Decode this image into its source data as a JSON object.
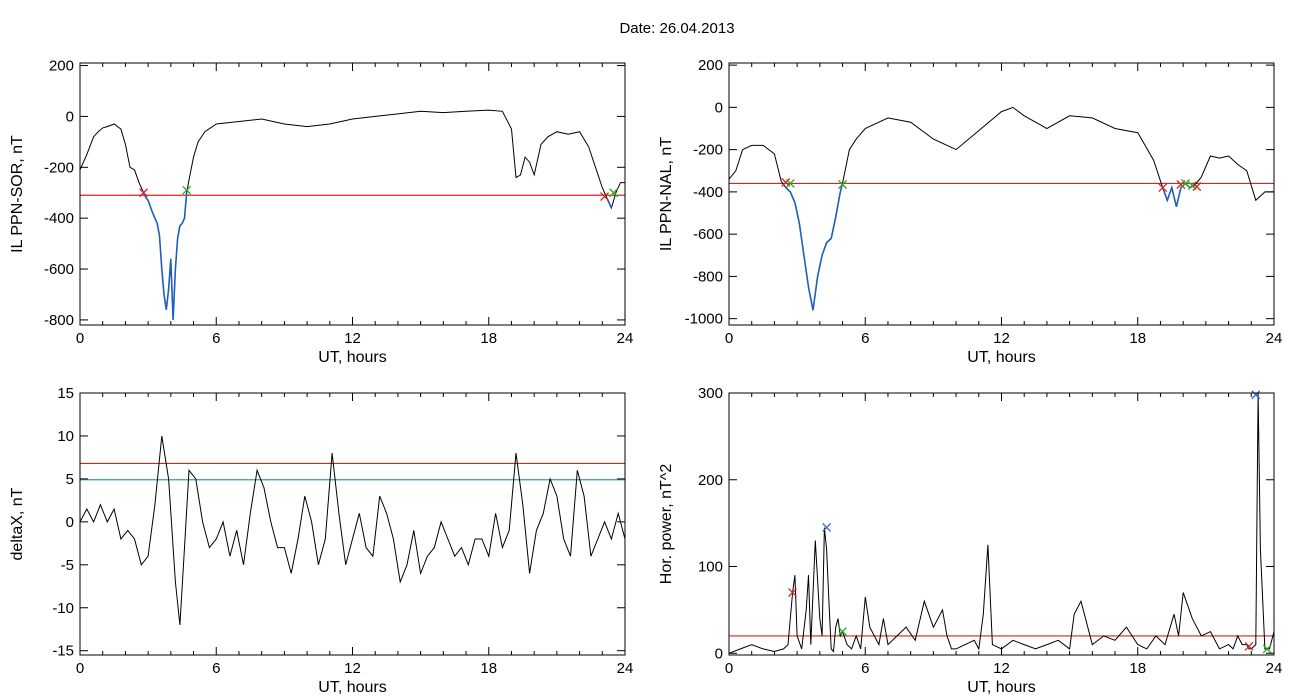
{
  "title": "Date:  26.04.2013",
  "chart_data": [
    {
      "type": "line",
      "xlabel": "UT, hours",
      "ylabel": "IL PPN-SOR, nT",
      "xlim": [
        0,
        24
      ],
      "ylim": [
        -820,
        210
      ],
      "xticks": [
        0,
        6,
        12,
        18,
        24
      ],
      "yticks": [
        200,
        0,
        -200,
        -400,
        -600,
        -800
      ],
      "threshold": -310,
      "line_color": "#000000",
      "highlight_color": "#1f5fbf",
      "threshold_color": "#dd2222",
      "series": [
        {
          "x": [
            0,
            0.3,
            0.6,
            0.8,
            1.0,
            1.2,
            1.5,
            1.8,
            2.0,
            2.2,
            2.4,
            2.6,
            2.8,
            2.9,
            3.0,
            3.2,
            3.4,
            3.5,
            3.6,
            3.7,
            3.8,
            3.9,
            4.0,
            4.1,
            4.2,
            4.3,
            4.4,
            4.5,
            4.6,
            4.7,
            4.8,
            5.0,
            5.2,
            5.5,
            6.0,
            7,
            8,
            9,
            10,
            11,
            12,
            13,
            14,
            15,
            16,
            17,
            18,
            18.6,
            19.0,
            19.2,
            19.4,
            19.6,
            19.8,
            20.0,
            20.3,
            20.6,
            21.0,
            21.5,
            22.0,
            22.4,
            22.7,
            23.0,
            23.2,
            23.4,
            23.6,
            23.8,
            24.0
          ],
          "y": [
            -210,
            -150,
            -80,
            -60,
            -45,
            -40,
            -30,
            -50,
            -110,
            -200,
            -210,
            -260,
            -300,
            -320,
            -330,
            -380,
            -420,
            -470,
            -600,
            -700,
            -760,
            -680,
            -560,
            -800,
            -600,
            -480,
            -430,
            -420,
            -400,
            -300,
            -250,
            -160,
            -100,
            -60,
            -30,
            -20,
            -10,
            -30,
            -40,
            -30,
            -10,
            0,
            10,
            20,
            15,
            20,
            25,
            20,
            -50,
            -240,
            -230,
            -160,
            -180,
            -230,
            -110,
            -80,
            -60,
            -70,
            -60,
            -120,
            -200,
            -280,
            -320,
            -360,
            -300,
            -260,
            -260
          ]
        }
      ],
      "markers": [
        {
          "x": 2.8,
          "y": -300,
          "color": "#dd2222"
        },
        {
          "x": 4.7,
          "y": -290,
          "color": "#22aa22"
        },
        {
          "x": 23.1,
          "y": -315,
          "color": "#dd2222"
        },
        {
          "x": 23.5,
          "y": -300,
          "color": "#22aa22"
        }
      ],
      "highlight_ranges": [
        [
          2.8,
          4.7
        ],
        [
          23.1,
          23.5
        ]
      ]
    },
    {
      "type": "line",
      "xlabel": "UT, hours",
      "ylabel": "IL PPN-NAL, nT",
      "xlim": [
        0,
        24
      ],
      "ylim": [
        -1030,
        210
      ],
      "xticks": [
        0,
        6,
        12,
        18,
        24
      ],
      "yticks": [
        200,
        0,
        -200,
        -400,
        -600,
        -800,
        -1000
      ],
      "threshold": -360,
      "line_color": "#000000",
      "highlight_color": "#1f5fbf",
      "threshold_color": "#dd2222",
      "series": [
        {
          "x": [
            0,
            0.3,
            0.6,
            1.0,
            1.5,
            2.0,
            2.3,
            2.5,
            2.7,
            2.9,
            3.1,
            3.3,
            3.5,
            3.7,
            3.9,
            4.1,
            4.3,
            4.5,
            4.7,
            4.9,
            5.0,
            5.3,
            5.6,
            6.0,
            7,
            8,
            9,
            10,
            11,
            12,
            12.5,
            13,
            14,
            15,
            16,
            17,
            18,
            18.7,
            19.1,
            19.3,
            19.5,
            19.7,
            19.9,
            20.1,
            20.3,
            20.5,
            20.8,
            21.2,
            21.6,
            22.0,
            22.4,
            22.8,
            23.2,
            23.6,
            24.0
          ],
          "y": [
            -340,
            -300,
            -200,
            -180,
            -180,
            -220,
            -350,
            -380,
            -400,
            -450,
            -550,
            -700,
            -850,
            -960,
            -800,
            -700,
            -640,
            -620,
            -520,
            -400,
            -360,
            -200,
            -150,
            -100,
            -50,
            -70,
            -150,
            -200,
            -110,
            -20,
            0,
            -40,
            -100,
            -40,
            -50,
            -100,
            -120,
            -250,
            -380,
            -440,
            -380,
            -470,
            -380,
            -360,
            -380,
            -370,
            -330,
            -230,
            -240,
            -230,
            -270,
            -300,
            -440,
            -400,
            -400
          ]
        }
      ],
      "markers": [
        {
          "x": 2.5,
          "y": -355,
          "color": "#dd2222"
        },
        {
          "x": 2.7,
          "y": -360,
          "color": "#22aa22"
        },
        {
          "x": 5.0,
          "y": -365,
          "color": "#22aa22"
        },
        {
          "x": 19.1,
          "y": -380,
          "color": "#dd2222"
        },
        {
          "x": 19.9,
          "y": -365,
          "color": "#dd2222"
        },
        {
          "x": 20.1,
          "y": -360,
          "color": "#22aa22"
        },
        {
          "x": 20.4,
          "y": -370,
          "color": "#22aa22"
        },
        {
          "x": 20.6,
          "y": -375,
          "color": "#dd2222"
        }
      ],
      "highlight_ranges": [
        [
          2.5,
          5.0
        ],
        [
          19.1,
          20.6
        ]
      ]
    },
    {
      "type": "line",
      "xlabel": "UT, hours",
      "ylabel": "deltaX, nT",
      "xlim": [
        0,
        24
      ],
      "ylim": [
        -15.5,
        15
      ],
      "xticks": [
        0,
        6,
        12,
        18,
        24
      ],
      "yticks": [
        15,
        10,
        5,
        0,
        -5,
        -10,
        -15
      ],
      "thresholds": [
        {
          "y": 6.8,
          "color": "#dd2222"
        },
        {
          "y": 4.9,
          "color": "#3399aa"
        }
      ],
      "line_color": "#000000",
      "series": [
        {
          "x": [
            0,
            0.3,
            0.6,
            0.9,
            1.2,
            1.5,
            1.8,
            2.1,
            2.4,
            2.7,
            3.0,
            3.3,
            3.6,
            3.9,
            4.2,
            4.4,
            4.6,
            4.8,
            5.1,
            5.4,
            5.7,
            6.0,
            6.3,
            6.6,
            6.9,
            7.2,
            7.5,
            7.8,
            8.1,
            8.4,
            8.7,
            9.0,
            9.3,
            9.6,
            9.9,
            10.2,
            10.5,
            10.8,
            11.1,
            11.4,
            11.7,
            12.0,
            12.3,
            12.6,
            12.9,
            13.2,
            13.5,
            13.8,
            14.1,
            14.4,
            14.7,
            15.0,
            15.3,
            15.6,
            15.9,
            16.2,
            16.5,
            16.8,
            17.1,
            17.4,
            17.7,
            18.0,
            18.3,
            18.6,
            18.9,
            19.2,
            19.5,
            19.8,
            20.1,
            20.4,
            20.7,
            21.0,
            21.3,
            21.6,
            21.9,
            22.2,
            22.5,
            22.8,
            23.1,
            23.4,
            23.7,
            24.0
          ],
          "y": [
            0,
            1.5,
            0,
            2,
            0,
            1.5,
            -2,
            -1,
            -2,
            -5,
            -4,
            2,
            10,
            5,
            -7,
            -12,
            -3,
            6,
            5,
            0,
            -3,
            -2,
            0,
            -4,
            -1,
            -5,
            1,
            6,
            4,
            0,
            -3,
            -3,
            -6,
            -2,
            3,
            0,
            -5,
            -2,
            8,
            1,
            -5,
            -2,
            1,
            -3,
            -4,
            3,
            1,
            -2,
            -7,
            -5,
            -1,
            -6,
            -4,
            -3,
            0,
            -2,
            -4,
            -3,
            -5,
            -2,
            -2,
            -4,
            1,
            -3,
            -1,
            8,
            2,
            -6,
            -1,
            1,
            5,
            3,
            -2,
            -4,
            6,
            3,
            -4,
            -2,
            0,
            -2,
            1,
            -2
          ]
        }
      ]
    },
    {
      "type": "line",
      "xlabel": "UT, hours",
      "ylabel": "Hor. power, nT^2",
      "xlim": [
        0,
        24
      ],
      "ylim": [
        -2,
        300
      ],
      "xticks": [
        0,
        6,
        12,
        18,
        24
      ],
      "yticks": [
        300,
        200,
        100,
        0
      ],
      "threshold": 20,
      "line_color": "#000000",
      "threshold_color": "#dd2222",
      "series": [
        {
          "x": [
            0,
            0.5,
            1.0,
            1.5,
            2.0,
            2.4,
            2.6,
            2.8,
            2.9,
            3.0,
            3.2,
            3.4,
            3.5,
            3.6,
            3.8,
            4.0,
            4.1,
            4.2,
            4.3,
            4.4,
            4.5,
            4.6,
            4.7,
            4.8,
            4.9,
            5.0,
            5.2,
            5.4,
            5.6,
            5.8,
            6.0,
            6.2,
            6.4,
            6.6,
            6.8,
            7.0,
            7.4,
            7.8,
            8.2,
            8.6,
            9.0,
            9.4,
            9.6,
            9.8,
            10.0,
            10.4,
            10.8,
            11.0,
            11.2,
            11.4,
            11.6,
            12.0,
            12.5,
            13,
            13.5,
            14,
            14.5,
            15,
            15.2,
            15.5,
            16,
            16.5,
            17,
            17.5,
            18,
            18.4,
            18.8,
            19.2,
            19.6,
            19.8,
            20.0,
            20.4,
            20.8,
            21.2,
            21.6,
            22,
            22.2,
            22.4,
            22.6,
            22.8,
            22.9,
            23.0,
            23.2,
            23.3,
            23.4,
            23.6,
            23.8,
            24.0
          ],
          "y": [
            0,
            5,
            10,
            5,
            2,
            5,
            10,
            70,
            90,
            20,
            5,
            50,
            90,
            10,
            130,
            40,
            20,
            145,
            120,
            60,
            5,
            2,
            30,
            40,
            20,
            25,
            10,
            5,
            20,
            5,
            65,
            30,
            20,
            10,
            40,
            10,
            20,
            30,
            15,
            60,
            30,
            50,
            20,
            5,
            5,
            10,
            15,
            5,
            45,
            125,
            10,
            5,
            15,
            10,
            5,
            10,
            15,
            5,
            45,
            60,
            10,
            20,
            15,
            30,
            10,
            5,
            20,
            10,
            45,
            20,
            70,
            40,
            20,
            25,
            5,
            10,
            5,
            20,
            10,
            10,
            5,
            5,
            10,
            300,
            120,
            5,
            5,
            25
          ]
        }
      ],
      "markers": [
        {
          "x": 2.8,
          "y": 70,
          "color": "#dd2222"
        },
        {
          "x": 4.3,
          "y": 145,
          "color": "#3366cc"
        },
        {
          "x": 5.0,
          "y": 25,
          "color": "#22aa22"
        },
        {
          "x": 22.9,
          "y": 8,
          "color": "#dd2222"
        },
        {
          "x": 23.2,
          "y": 298,
          "color": "#3366cc"
        },
        {
          "x": 23.7,
          "y": 5,
          "color": "#22aa22"
        }
      ]
    }
  ]
}
